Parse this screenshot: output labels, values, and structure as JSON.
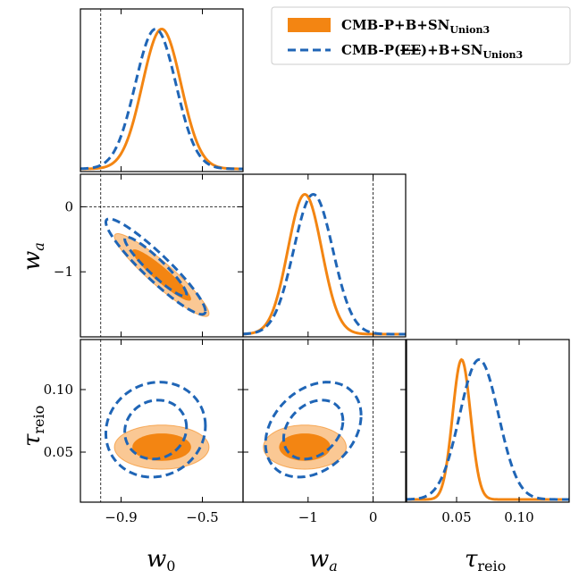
{
  "chart_data": {
    "type": "triangle-plot",
    "parameters": [
      {
        "name": "w0",
        "label": "w",
        "label_sub": "0"
      },
      {
        "name": "wa",
        "label": "w",
        "label_sub": "a"
      },
      {
        "name": "tau_reio",
        "label": "τ",
        "label_sub": "reio"
      }
    ],
    "ranges": {
      "w0": [
        -1.1,
        -0.3
      ],
      "wa": [
        -2.0,
        0.5
      ],
      "tau_reio": [
        0.01,
        0.14
      ]
    },
    "ticks": {
      "w0": [
        {
          "value": -0.9,
          "label": "−0.9"
        },
        {
          "value": -0.5,
          "label": "−0.5"
        }
      ],
      "wa": [
        {
          "value": 0,
          "label": "0"
        },
        {
          "value": -1,
          "label": "−1"
        }
      ],
      "tau_reio": [
        {
          "value": 0.05,
          "label": "0.05"
        },
        {
          "value": 0.1,
          "label": "0.10"
        }
      ]
    },
    "reference_lines": {
      "w0": -1,
      "wa": 0
    },
    "series": [
      {
        "name": "CMB-P+B+SN",
        "legend_label": "CMB-P+B+SN",
        "legend_sub": "Union3",
        "color": "#f38512",
        "style": "filled",
        "mean": {
          "w0": -0.7,
          "wa": -1.05,
          "tau_reio": 0.054
        },
        "sigma": {
          "w0": 0.095,
          "wa": 0.26,
          "tau_reio": 0.0072
        },
        "corr": {
          "w0_wa": -0.93,
          "w0_tau": 0.0,
          "wa_tau": 0.0
        }
      },
      {
        "name": "CMB-P(EE)+B+SN",
        "legend_label_pre": "CMB-P(",
        "legend_label_strike": "EE",
        "legend_label_post": ")+B+SN",
        "legend_sub": "Union3",
        "color": "#1f65b6",
        "style": "dashed",
        "mean": {
          "w0": -0.73,
          "wa": -0.92,
          "tau_reio": 0.068
        },
        "sigma": {
          "w0": 0.1,
          "wa": 0.3,
          "tau_reio": 0.0155
        },
        "corr": {
          "w0_wa": -0.93,
          "w0_tau": 0.08,
          "wa_tau": 0.3
        }
      }
    ]
  }
}
